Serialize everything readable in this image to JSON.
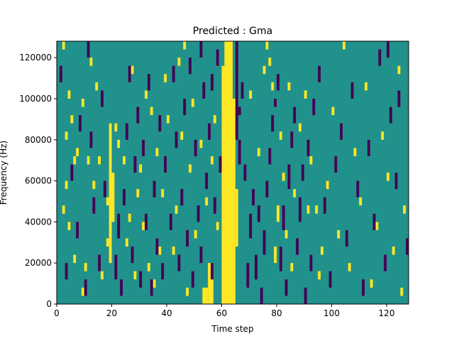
{
  "chart_data": {
    "type": "heatmap",
    "title": "Predicted : Gma",
    "xlabel": "Time step",
    "ylabel": "Frequency (Hz)",
    "xlim": [
      0,
      128
    ],
    "ylim": [
      0,
      128000
    ],
    "x_ticks": [
      0,
      20,
      40,
      60,
      80,
      100,
      120
    ],
    "y_ticks": [
      0,
      20000,
      40000,
      60000,
      80000,
      100000,
      120000
    ],
    "x_tick_labels": [
      "0",
      "20",
      "40",
      "60",
      "80",
      "100",
      "120"
    ],
    "y_tick_labels": [
      "0",
      "20000",
      "40000",
      "60000",
      "80000",
      "100000",
      "120000"
    ],
    "grid": false,
    "legend": "none",
    "colormap": "viridis",
    "background_value": 0.5,
    "colors": {
      "low": "#440154",
      "mid": "#21918c",
      "high": "#fde725"
    },
    "bins": {
      "n_time": 128,
      "n_freq": 32
    },
    "cells_high": [
      [
        60,
        0,
        64,
        29
      ],
      [
        55,
        0,
        57,
        5
      ],
      [
        53,
        0,
        55,
        2
      ],
      [
        60,
        0,
        61,
        25
      ],
      [
        64,
        0,
        65,
        25
      ],
      [
        65,
        7,
        66,
        14
      ],
      [
        61,
        29,
        64,
        32
      ],
      [
        62,
        0,
        63,
        30
      ],
      [
        19,
        5,
        20,
        22
      ],
      [
        20,
        10,
        21,
        16
      ],
      [
        18,
        7,
        19,
        8
      ],
      [
        2,
        31,
        3,
        32
      ],
      [
        4,
        25,
        5,
        26
      ],
      [
        5,
        22,
        6,
        23
      ],
      [
        3,
        14,
        4,
        15
      ],
      [
        4,
        9,
        5,
        10
      ],
      [
        2,
        11,
        3,
        12
      ],
      [
        3,
        20,
        4,
        21
      ],
      [
        6,
        17,
        7,
        18
      ],
      [
        7,
        18,
        8,
        19
      ],
      [
        6,
        5,
        7,
        6
      ],
      [
        9,
        1,
        10,
        2
      ],
      [
        10,
        4,
        11,
        5
      ],
      [
        9,
        24,
        10,
        25
      ],
      [
        12,
        29,
        13,
        30
      ],
      [
        11,
        17,
        12,
        18
      ],
      [
        13,
        14,
        14,
        15
      ],
      [
        15,
        17,
        16,
        18
      ],
      [
        14,
        26,
        15,
        27
      ],
      [
        16,
        3,
        17,
        4
      ],
      [
        18,
        12,
        19,
        13
      ],
      [
        21,
        21,
        22,
        22
      ],
      [
        22,
        19,
        23,
        20
      ],
      [
        24,
        17,
        25,
        18
      ],
      [
        26,
        10,
        27,
        11
      ],
      [
        25,
        7,
        26,
        8
      ],
      [
        28,
        3,
        29,
        4
      ],
      [
        29,
        13,
        30,
        14
      ],
      [
        30,
        16,
        31,
        17
      ],
      [
        31,
        9,
        32,
        10
      ],
      [
        33,
        4,
        34,
        5
      ],
      [
        35,
        2,
        36,
        3
      ],
      [
        37,
        6,
        38,
        7
      ],
      [
        34,
        23,
        35,
        24
      ],
      [
        36,
        18,
        37,
        19
      ],
      [
        38,
        13,
        39,
        14
      ],
      [
        40,
        22,
        41,
        23
      ],
      [
        42,
        6,
        43,
        7
      ],
      [
        43,
        11,
        44,
        12
      ],
      [
        45,
        20,
        46,
        21
      ],
      [
        47,
        1,
        48,
        2
      ],
      [
        48,
        16,
        49,
        17
      ],
      [
        50,
        8,
        51,
        9
      ],
      [
        52,
        19,
        53,
        20
      ],
      [
        54,
        12,
        55,
        13
      ],
      [
        56,
        17,
        57,
        18
      ],
      [
        58,
        9,
        59,
        10
      ],
      [
        57,
        22,
        58,
        23
      ],
      [
        46,
        31,
        47,
        32
      ],
      [
        70,
        25,
        71,
        26
      ],
      [
        73,
        18,
        74,
        19
      ],
      [
        75,
        28,
        76,
        29
      ],
      [
        76,
        31,
        77,
        32
      ],
      [
        78,
        26,
        79,
        27
      ],
      [
        80,
        10,
        81,
        12
      ],
      [
        79,
        5,
        80,
        7
      ],
      [
        82,
        15,
        83,
        16
      ],
      [
        83,
        8,
        84,
        9
      ],
      [
        85,
        4,
        86,
        5
      ],
      [
        86,
        13,
        87,
        14
      ],
      [
        88,
        21,
        89,
        22
      ],
      [
        90,
        25,
        91,
        26
      ],
      [
        92,
        17,
        93,
        18
      ],
      [
        94,
        11,
        95,
        12
      ],
      [
        96,
        6,
        97,
        7
      ],
      [
        98,
        14,
        99,
        15
      ],
      [
        100,
        23,
        101,
        24
      ],
      [
        102,
        8,
        103,
        9
      ],
      [
        104,
        31,
        105,
        32
      ],
      [
        106,
        4,
        107,
        5
      ],
      [
        108,
        18,
        109,
        19
      ],
      [
        110,
        12,
        111,
        13
      ],
      [
        112,
        26,
        113,
        27
      ],
      [
        114,
        2,
        115,
        3
      ],
      [
        116,
        9,
        117,
        10
      ],
      [
        118,
        20,
        119,
        21
      ],
      [
        120,
        15,
        121,
        16
      ],
      [
        122,
        6,
        123,
        7
      ],
      [
        124,
        28,
        125,
        29
      ],
      [
        126,
        11,
        127,
        12
      ],
      [
        125,
        1,
        126,
        2
      ],
      [
        27,
        28,
        28,
        29
      ],
      [
        32,
        25,
        33,
        26
      ],
      [
        39,
        27,
        40,
        28
      ],
      [
        44,
        29,
        45,
        30
      ],
      [
        49,
        24,
        50,
        25
      ],
      [
        81,
        20,
        82,
        21
      ],
      [
        77,
        29,
        78,
        30
      ],
      [
        84,
        26,
        85,
        27
      ],
      [
        91,
        11,
        92,
        12
      ],
      [
        95,
        3,
        96,
        4
      ]
    ],
    "cells_low": [
      [
        65,
        20,
        66,
        32
      ],
      [
        66,
        17,
        67,
        20
      ],
      [
        66,
        23,
        67,
        24
      ],
      [
        67,
        25,
        68,
        27
      ],
      [
        68,
        15,
        69,
        17
      ],
      [
        69,
        2,
        70,
        5
      ],
      [
        70,
        8,
        71,
        11
      ],
      [
        71,
        12,
        72,
        14
      ],
      [
        72,
        3,
        73,
        6
      ],
      [
        73,
        10,
        74,
        12
      ],
      [
        74,
        0,
        75,
        2
      ],
      [
        75,
        6,
        76,
        9
      ],
      [
        76,
        13,
        77,
        15
      ],
      [
        77,
        17,
        78,
        19
      ],
      [
        78,
        21,
        79,
        23
      ],
      [
        79,
        24,
        80,
        25
      ],
      [
        80,
        26,
        81,
        28
      ],
      [
        81,
        4,
        82,
        7
      ],
      [
        82,
        9,
        83,
        12
      ],
      [
        83,
        1,
        84,
        3
      ],
      [
        84,
        14,
        85,
        17
      ],
      [
        85,
        19,
        86,
        21
      ],
      [
        86,
        22,
        87,
        24
      ],
      [
        87,
        6,
        88,
        8
      ],
      [
        88,
        10,
        89,
        13
      ],
      [
        89,
        15,
        90,
        17
      ],
      [
        90,
        0,
        91,
        2
      ],
      [
        91,
        18,
        92,
        20
      ],
      [
        92,
        4,
        93,
        6
      ],
      [
        93,
        23,
        94,
        25
      ],
      [
        95,
        27,
        96,
        29
      ],
      [
        97,
        11,
        98,
        13
      ],
      [
        99,
        2,
        100,
        4
      ],
      [
        101,
        16,
        102,
        18
      ],
      [
        103,
        20,
        104,
        22
      ],
      [
        105,
        7,
        106,
        9
      ],
      [
        107,
        25,
        108,
        27
      ],
      [
        109,
        13,
        110,
        15
      ],
      [
        111,
        1,
        112,
        3
      ],
      [
        113,
        18,
        114,
        20
      ],
      [
        115,
        9,
        116,
        11
      ],
      [
        117,
        29,
        118,
        31
      ],
      [
        119,
        4,
        120,
        6
      ],
      [
        121,
        22,
        122,
        24
      ],
      [
        123,
        14,
        124,
        16
      ],
      [
        127,
        6,
        128,
        8
      ],
      [
        124,
        24,
        125,
        26
      ],
      [
        120,
        30,
        121,
        32
      ],
      [
        1,
        27,
        2,
        29
      ],
      [
        3,
        3,
        4,
        5
      ],
      [
        5,
        15,
        6,
        17
      ],
      [
        7,
        8,
        8,
        10
      ],
      [
        8,
        21,
        9,
        23
      ],
      [
        10,
        1,
        11,
        3
      ],
      [
        11,
        30,
        12,
        32
      ],
      [
        12,
        19,
        13,
        21
      ],
      [
        13,
        11,
        14,
        13
      ],
      [
        15,
        4,
        16,
        6
      ],
      [
        16,
        24,
        17,
        26
      ],
      [
        17,
        13,
        18,
        15
      ],
      [
        21,
        3,
        22,
        6
      ],
      [
        22,
        8,
        23,
        11
      ],
      [
        23,
        1,
        24,
        3
      ],
      [
        24,
        12,
        25,
        14
      ],
      [
        25,
        20,
        26,
        22
      ],
      [
        26,
        27,
        27,
        29
      ],
      [
        27,
        5,
        28,
        7
      ],
      [
        28,
        16,
        29,
        18
      ],
      [
        29,
        22,
        30,
        24
      ],
      [
        30,
        2,
        31,
        4
      ],
      [
        31,
        18,
        32,
        20
      ],
      [
        32,
        9,
        33,
        11
      ],
      [
        33,
        26,
        34,
        28
      ],
      [
        34,
        1,
        35,
        3
      ],
      [
        35,
        13,
        36,
        15
      ],
      [
        36,
        6,
        37,
        8
      ],
      [
        37,
        21,
        38,
        23
      ],
      [
        38,
        3,
        39,
        5
      ],
      [
        39,
        16,
        40,
        18
      ],
      [
        41,
        9,
        42,
        11
      ],
      [
        42,
        27,
        43,
        29
      ],
      [
        43,
        19,
        44,
        21
      ],
      [
        44,
        4,
        45,
        6
      ],
      [
        45,
        12,
        46,
        14
      ],
      [
        46,
        23,
        47,
        25
      ],
      [
        47,
        7,
        48,
        9
      ],
      [
        48,
        28,
        49,
        30
      ],
      [
        49,
        2,
        50,
        4
      ],
      [
        50,
        18,
        51,
        20
      ],
      [
        51,
        10,
        52,
        12
      ],
      [
        52,
        5,
        53,
        7
      ],
      [
        53,
        25,
        54,
        27
      ],
      [
        54,
        14,
        55,
        16
      ],
      [
        55,
        20,
        56,
        22
      ],
      [
        56,
        3,
        57,
        5
      ],
      [
        57,
        11,
        58,
        13
      ],
      [
        58,
        29,
        59,
        31
      ],
      [
        59,
        16,
        60,
        18
      ],
      [
        56,
        26,
        57,
        28
      ],
      [
        52,
        30,
        53,
        32
      ]
    ]
  }
}
